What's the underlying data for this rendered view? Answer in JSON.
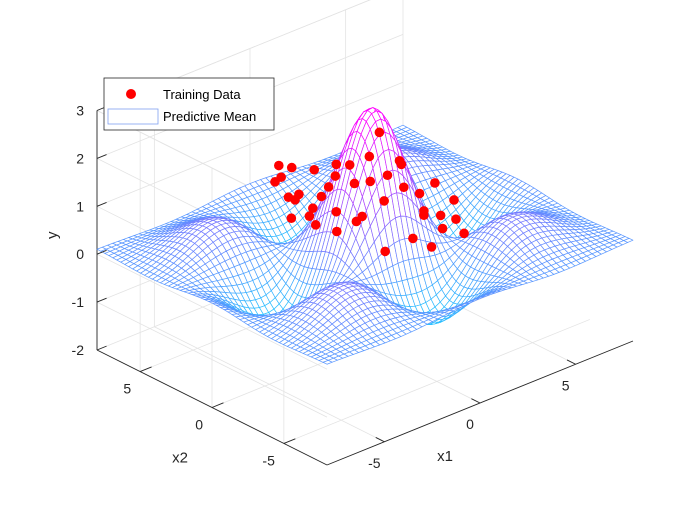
{
  "chart_data": {
    "type": "surface",
    "xlabel": "x1",
    "ylabel": "x2",
    "zlabel": "y",
    "xlim": [
      -8,
      8
    ],
    "ylim": [
      -8,
      8
    ],
    "zlim": [
      -2,
      3
    ],
    "x_ticks": [
      "-5",
      "0",
      "5"
    ],
    "y_ticks": [
      "-5",
      "0",
      "5"
    ],
    "z_ticks": [
      "-2",
      "-1",
      "0",
      "1",
      "2",
      "3"
    ],
    "grid": true,
    "legend": {
      "placement": "top-left",
      "entries": [
        "Training Data",
        "Predictive Mean"
      ]
    },
    "series": [
      {
        "name": "Training Data",
        "kind": "scatter",
        "color": "#ff0000",
        "points": [
          {
            "x": -1.0,
            "y": 4.5,
            "z": 1.0
          },
          {
            "x": -1.5,
            "y": 4.0,
            "z": 1.4
          },
          {
            "x": -0.8,
            "y": 3.8,
            "z": 0.6
          },
          {
            "x": -2.0,
            "y": 3.6,
            "z": 1.2
          },
          {
            "x": -0.5,
            "y": 3.2,
            "z": 0.3
          },
          {
            "x": -1.2,
            "y": 3.0,
            "z": 0.9
          },
          {
            "x": -1.8,
            "y": 2.7,
            "z": 1.6
          },
          {
            "x": -0.4,
            "y": 2.5,
            "z": 0.8
          },
          {
            "x": -1.0,
            "y": 2.2,
            "z": 1.5
          },
          {
            "x": -2.5,
            "y": 2.0,
            "z": 1.2
          },
          {
            "x": -0.2,
            "y": 1.8,
            "z": 1.3
          },
          {
            "x": -1.6,
            "y": 1.5,
            "z": 0.9
          },
          {
            "x": -0.6,
            "y": 1.2,
            "z": 1.7
          },
          {
            "x": 0.2,
            "y": 1.0,
            "z": 1.2
          },
          {
            "x": -1.3,
            "y": 0.8,
            "z": 1.4
          },
          {
            "x": -2.2,
            "y": 0.5,
            "z": 0.8
          },
          {
            "x": 0.5,
            "y": 0.3,
            "z": 1.3
          },
          {
            "x": -0.8,
            "y": 0.0,
            "z": 1.9
          },
          {
            "x": -1.7,
            "y": -0.3,
            "z": 0.7
          },
          {
            "x": 0.8,
            "y": -0.5,
            "z": 1.5
          },
          {
            "x": -0.3,
            "y": -0.7,
            "z": 2.1
          },
          {
            "x": 0.0,
            "y": -1.0,
            "z": 2.6
          },
          {
            "x": 1.0,
            "y": -1.2,
            "z": 1.8
          },
          {
            "x": -1.2,
            "y": -1.4,
            "z": 1.1
          },
          {
            "x": 0.6,
            "y": -1.6,
            "z": 2.0
          },
          {
            "x": 1.5,
            "y": -1.8,
            "z": 1.2
          },
          {
            "x": -0.5,
            "y": -2.0,
            "z": 1.4
          },
          {
            "x": 0.3,
            "y": -2.3,
            "z": 1.6
          },
          {
            "x": 1.2,
            "y": -2.5,
            "z": 0.9
          },
          {
            "x": 2.0,
            "y": -2.2,
            "z": 1.4
          },
          {
            "x": -0.9,
            "y": -2.6,
            "z": 0.5
          },
          {
            "x": 0.9,
            "y": -2.9,
            "z": 1.1
          },
          {
            "x": 1.8,
            "y": -3.0,
            "z": 0.6
          },
          {
            "x": 0.1,
            "y": -3.2,
            "z": 0.7
          },
          {
            "x": 1.4,
            "y": -3.4,
            "z": 1.0
          },
          {
            "x": 2.4,
            "y": -3.0,
            "z": 1.1
          },
          {
            "x": 0.7,
            "y": -3.7,
            "z": 0.5
          },
          {
            "x": 1.9,
            "y": -3.8,
            "z": 0.9
          },
          {
            "x": 2.7,
            "y": -3.3,
            "z": 0.4
          },
          {
            "x": -0.3,
            "y": 1.6,
            "z": 0.6
          },
          {
            "x": 0.0,
            "y": 0.6,
            "z": 0.5
          },
          {
            "x": -2.8,
            "y": 1.4,
            "z": 0.9
          }
        ]
      },
      {
        "name": "Predictive Mean",
        "kind": "mesh",
        "color_low": "#00e6ff",
        "color_high": "#ff00ff"
      }
    ]
  }
}
